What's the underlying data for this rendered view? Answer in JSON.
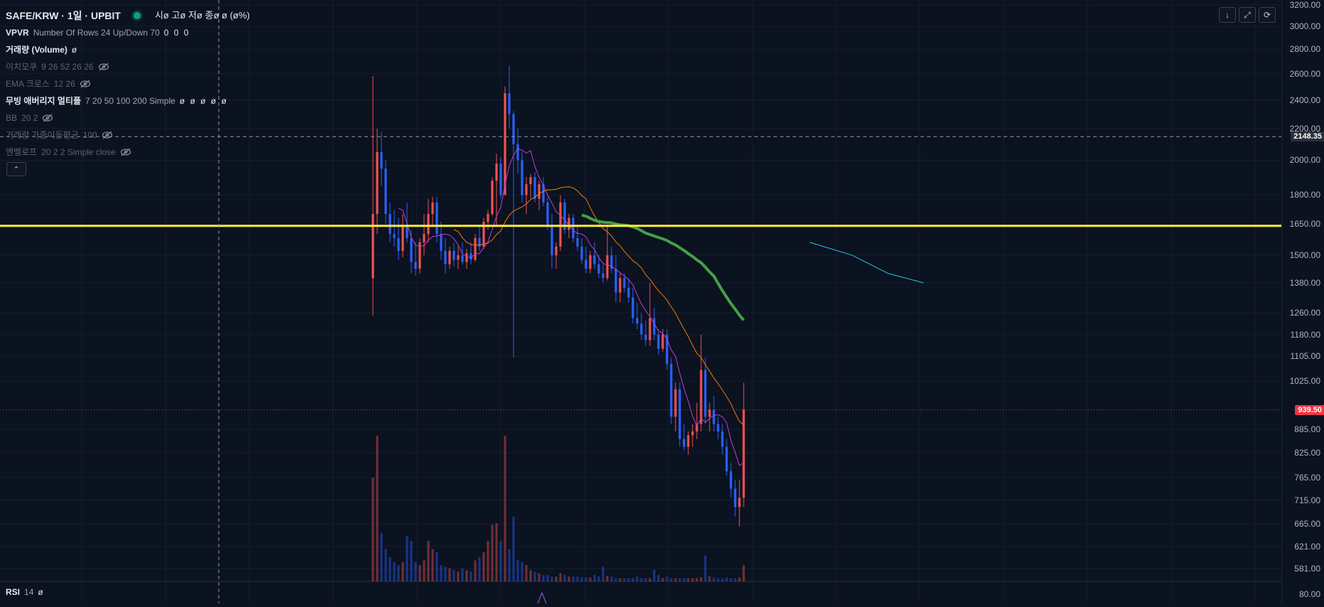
{
  "header": {
    "symbol_title": "SAFE/KRW · 1일 · UPBIT",
    "ohlc_text": "시ø 고ø 저ø 종ø ø (ø%)"
  },
  "indicators": [
    {
      "name": "VPVR",
      "params": "Number Of Rows 24 Up/Down 70",
      "values": "0 0 0",
      "hidden": false,
      "bold": true
    },
    {
      "name": "거래량 (Volume)",
      "params": "",
      "values": "ø",
      "hidden": false,
      "bold": true
    },
    {
      "name": "이치모쿠",
      "params": "9 26 52 26 26",
      "values": "",
      "hidden": true,
      "bold": false
    },
    {
      "name": "EMA 크로스",
      "params": "12 26",
      "values": "",
      "hidden": true,
      "bold": false
    },
    {
      "name": "무빙 애버리지 멀티플",
      "params": "7 20 50 100 200 Simple",
      "values": "ø ø ø ø ø",
      "hidden": false,
      "bold": true
    },
    {
      "name": "BB",
      "params": "20 2",
      "values": "",
      "hidden": true,
      "bold": false
    },
    {
      "name": "거래량 가중이동평균",
      "params": "100",
      "values": "",
      "hidden": true,
      "bold": false
    },
    {
      "name": "엔벨로프",
      "params": "20 2 2 Simple close",
      "values": "",
      "hidden": true,
      "bold": false
    }
  ],
  "rsi": {
    "name": "RSI",
    "params": "14",
    "value": "ø"
  },
  "icons": {
    "collapse": "chevron-up-icon",
    "down": "arrow-down-icon",
    "fullscreen": "fullscreen-icon",
    "reset": "reset-icon",
    "visibility": "eye-off-icon",
    "live": "live-status-icon"
  },
  "colors": {
    "up": "#ef5350",
    "down": "#2962ff",
    "ma7": "#c33ad8",
    "ma20": "#f57c00",
    "ma50": "#43a047",
    "ma100": "#26c6da",
    "hline": "#ffeb3b",
    "last_price_tag": "#f23645"
  },
  "chart_data": {
    "type": "candlestick",
    "y_ticks": [
      "3200.00",
      "3000.00",
      "2800.00",
      "2600.00",
      "2400.00",
      "2200.00",
      "2000.00",
      "1800.00",
      "1650.00",
      "1500.00",
      "1380.00",
      "1260.00",
      "1180.00",
      "1105.00",
      "1025.00",
      "885.00",
      "825.00",
      "765.00",
      "715.00",
      "665.00",
      "621.00",
      "581.00"
    ],
    "rsi_tick": "80.00",
    "crosshair_price": "2148.35",
    "last_price": "939.50",
    "horizontal_line": 1640,
    "candles": [
      [
        1400,
        2580,
        1250,
        1700
      ],
      [
        1700,
        2200,
        1600,
        2050
      ],
      [
        2050,
        2180,
        1850,
        1950
      ],
      [
        1950,
        2000,
        1650,
        1700
      ],
      [
        1700,
        1760,
        1560,
        1600
      ],
      [
        1600,
        1720,
        1540,
        1580
      ],
      [
        1580,
        1680,
        1480,
        1520
      ],
      [
        1520,
        1700,
        1490,
        1640
      ],
      [
        1640,
        1760,
        1560,
        1580
      ],
      [
        1580,
        1620,
        1420,
        1470
      ],
      [
        1470,
        1560,
        1410,
        1440
      ],
      [
        1440,
        1580,
        1420,
        1560
      ],
      [
        1560,
        1700,
        1500,
        1600
      ],
      [
        1600,
        1780,
        1560,
        1700
      ],
      [
        1700,
        1790,
        1640,
        1760
      ],
      [
        1760,
        1790,
        1560,
        1600
      ],
      [
        1600,
        1660,
        1480,
        1520
      ],
      [
        1520,
        1580,
        1420,
        1460
      ],
      [
        1460,
        1540,
        1440,
        1520
      ],
      [
        1520,
        1560,
        1450,
        1480
      ],
      [
        1480,
        1540,
        1440,
        1500
      ],
      [
        1500,
        1560,
        1460,
        1470
      ],
      [
        1470,
        1530,
        1440,
        1510
      ],
      [
        1510,
        1560,
        1460,
        1480
      ],
      [
        1480,
        1600,
        1470,
        1580
      ],
      [
        1580,
        1640,
        1520,
        1540
      ],
      [
        1540,
        1680,
        1530,
        1660
      ],
      [
        1660,
        1720,
        1620,
        1700
      ],
      [
        1700,
        1900,
        1690,
        1880
      ],
      [
        1880,
        2040,
        1640,
        1980
      ],
      [
        1980,
        2020,
        1780,
        1800
      ],
      [
        1800,
        2500,
        1800,
        2450
      ],
      [
        2450,
        2660,
        2200,
        2300
      ],
      [
        2300,
        2320,
        1100,
        2100
      ],
      [
        2100,
        2200,
        1920,
        2000
      ],
      [
        2000,
        2050,
        1760,
        1800
      ],
      [
        1800,
        1900,
        1700,
        1860
      ],
      [
        1860,
        1920,
        1780,
        1900
      ],
      [
        1900,
        1930,
        1760,
        1780
      ],
      [
        1780,
        1880,
        1720,
        1860
      ],
      [
        1860,
        1900,
        1740,
        1760
      ],
      [
        1760,
        1790,
        1620,
        1640
      ],
      [
        1640,
        1700,
        1440,
        1500
      ],
      [
        1500,
        1560,
        1440,
        1540
      ],
      [
        1540,
        1800,
        1520,
        1760
      ],
      [
        1760,
        1780,
        1600,
        1620
      ],
      [
        1620,
        1700,
        1580,
        1680
      ],
      [
        1680,
        1700,
        1560,
        1580
      ],
      [
        1580,
        1640,
        1520,
        1540
      ],
      [
        1540,
        1580,
        1460,
        1480
      ],
      [
        1480,
        1540,
        1420,
        1440
      ],
      [
        1440,
        1520,
        1420,
        1500
      ],
      [
        1500,
        1560,
        1440,
        1460
      ],
      [
        1460,
        1500,
        1400,
        1420
      ],
      [
        1420,
        1460,
        1380,
        1400
      ],
      [
        1400,
        1640,
        1390,
        1500
      ],
      [
        1500,
        1540,
        1420,
        1440
      ],
      [
        1440,
        1500,
        1300,
        1340
      ],
      [
        1340,
        1420,
        1300,
        1400
      ],
      [
        1400,
        1420,
        1340,
        1360
      ],
      [
        1360,
        1400,
        1300,
        1320
      ],
      [
        1320,
        1360,
        1220,
        1240
      ],
      [
        1240,
        1300,
        1200,
        1220
      ],
      [
        1220,
        1260,
        1160,
        1180
      ],
      [
        1180,
        1230,
        1140,
        1160
      ],
      [
        1160,
        1380,
        1140,
        1240
      ],
      [
        1240,
        1280,
        1160,
        1180
      ],
      [
        1180,
        1200,
        1110,
        1130
      ],
      [
        1130,
        1200,
        1120,
        1180
      ],
      [
        1180,
        1200,
        1060,
        1080
      ],
      [
        1080,
        1100,
        900,
        920
      ],
      [
        920,
        1020,
        880,
        1000
      ],
      [
        1000,
        1020,
        840,
        860
      ],
      [
        860,
        900,
        830,
        840
      ],
      [
        840,
        880,
        820,
        870
      ],
      [
        870,
        900,
        840,
        880
      ],
      [
        880,
        960,
        860,
        900
      ],
      [
        900,
        1180,
        880,
        1060
      ],
      [
        1060,
        1100,
        900,
        920
      ],
      [
        920,
        960,
        880,
        940
      ],
      [
        940,
        980,
        880,
        900
      ],
      [
        900,
        920,
        860,
        880
      ],
      [
        880,
        900,
        820,
        840
      ],
      [
        840,
        860,
        770,
        780
      ],
      [
        780,
        800,
        720,
        740
      ],
      [
        740,
        760,
        680,
        700
      ],
      [
        700,
        760,
        660,
        720
      ],
      [
        720,
        1020,
        700,
        940
      ]
    ],
    "volume": [
      640,
      900,
      300,
      200,
      150,
      120,
      100,
      120,
      280,
      250,
      120,
      100,
      130,
      250,
      200,
      180,
      100,
      90,
      80,
      70,
      60,
      80,
      70,
      60,
      130,
      150,
      180,
      250,
      350,
      360,
      250,
      900,
      200,
      400,
      130,
      120,
      100,
      70,
      60,
      50,
      40,
      40,
      30,
      30,
      50,
      40,
      30,
      30,
      30,
      25,
      25,
      25,
      40,
      30,
      90,
      35,
      30,
      20,
      20,
      20,
      20,
      20,
      30,
      20,
      20,
      20,
      70,
      40,
      20,
      30,
      20,
      20,
      20,
      20,
      20,
      20,
      20,
      25,
      160,
      30,
      25,
      20,
      20,
      25,
      20,
      20,
      25,
      100
    ],
    "ma100_points": [
      [
        1140,
        1560
      ],
      [
        1200,
        1500
      ],
      [
        1250,
        1420
      ],
      [
        1300,
        1380
      ]
    ]
  }
}
